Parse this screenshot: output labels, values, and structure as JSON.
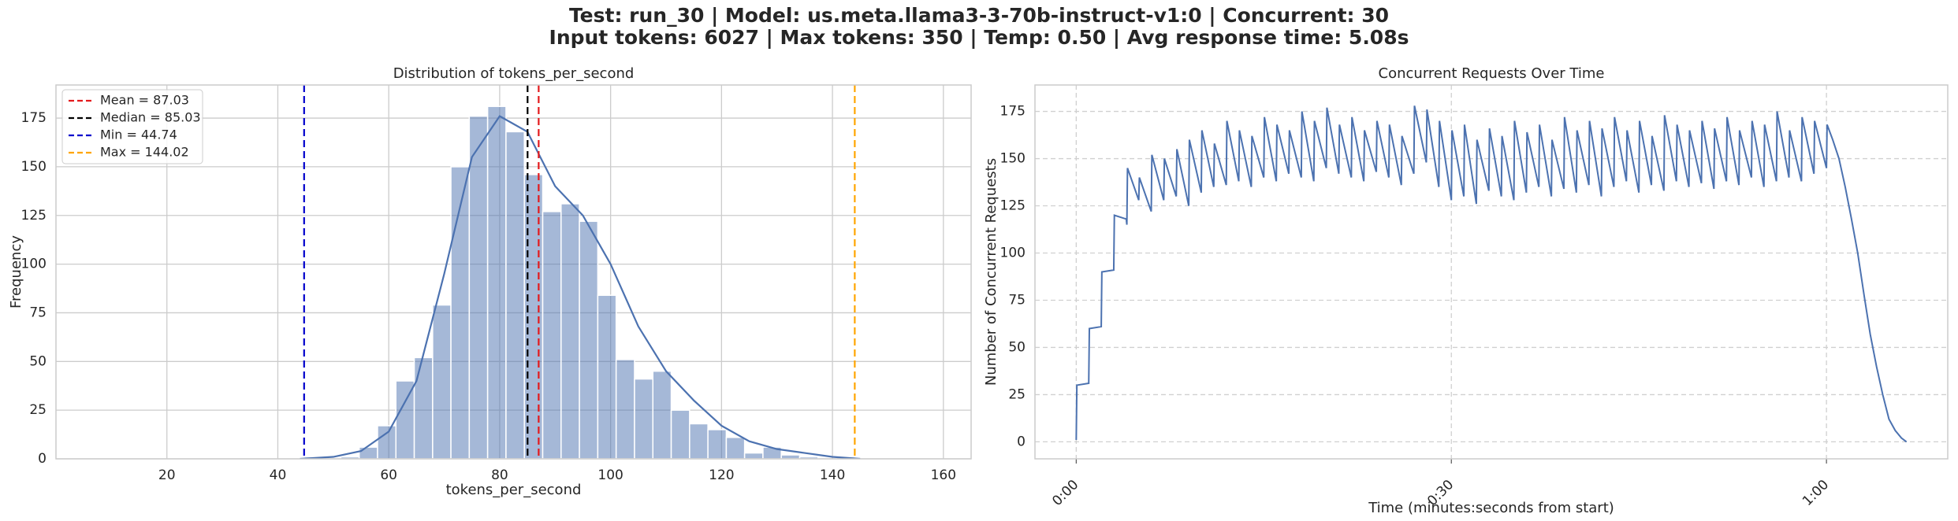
{
  "title": "Test: run_30 | Model: us.meta.llama3-3-70b-instruct-v1:0 | Concurrent: 30",
  "subtitle": "Input tokens: 6027 | Max tokens: 350 | Temp: 0.50 | Avg response time: 5.08s",
  "chart_data": [
    {
      "type": "histogram",
      "title": "Distribution of tokens_per_second",
      "x_label": "tokens_per_second",
      "y_label": "Frequency",
      "bins": [
        44.74,
        48.05,
        51.36,
        54.67,
        57.98,
        61.29,
        64.6,
        67.91,
        71.21,
        74.52,
        77.83,
        81.14,
        84.45,
        87.76,
        91.07,
        94.38,
        97.69,
        101.0,
        104.31,
        107.62,
        110.93,
        114.24,
        117.55,
        120.86,
        124.16,
        127.47,
        130.78,
        134.09,
        137.4,
        140.71,
        144.02
      ],
      "counts": [
        1,
        0,
        1,
        6,
        17,
        40,
        52,
        79,
        150,
        176,
        181,
        168,
        146,
        127,
        131,
        122,
        84,
        51,
        41,
        45,
        25,
        18,
        15,
        11,
        3,
        6,
        2,
        1,
        0,
        1
      ],
      "color": "#4c72b0",
      "kde": {
        "x": [
          44,
          50,
          55,
          60,
          65,
          70,
          75,
          80,
          85,
          90,
          95,
          100,
          105,
          110,
          115,
          120,
          125,
          130,
          135,
          140,
          145
        ],
        "y": [
          0,
          1,
          4,
          14,
          40,
          95,
          155,
          176,
          168,
          140,
          125,
          100,
          68,
          45,
          30,
          17,
          9,
          5,
          3,
          1,
          0
        ]
      },
      "lines": [
        {
          "name": "Mean = 87.03",
          "value": 87.03,
          "color": "#e41a1c"
        },
        {
          "name": "Median = 85.03",
          "value": 85.03,
          "color": "#000000"
        },
        {
          "name": "Min = 44.74",
          "value": 44.74,
          "color": "#0000cc"
        },
        {
          "name": "Max = 144.02",
          "value": 144.02,
          "color": "#ffa500"
        }
      ],
      "legend": "upper left",
      "xlim": [
        0,
        165
      ],
      "ylim": [
        0,
        192
      ],
      "xticks": [
        20,
        40,
        60,
        80,
        100,
        120,
        140,
        160
      ],
      "yticks": [
        0,
        25,
        50,
        75,
        100,
        125,
        150,
        175
      ],
      "grid": true,
      "grid_style": "solid"
    },
    {
      "type": "line",
      "title": "Concurrent Requests Over Time",
      "x_label": "Time (minutes:seconds from start)",
      "y_label": "Number of Concurrent Requests",
      "x": [
        0,
        0.05,
        1,
        1.05,
        2,
        2.05,
        3,
        3.05,
        4,
        4.05,
        4.1,
        5,
        5.05,
        6,
        6.05,
        7,
        7.05,
        8,
        8.05,
        9,
        9.05,
        10,
        10.05,
        11,
        11.05,
        12,
        12.05,
        13,
        13.05,
        14,
        14.05,
        15,
        15.05,
        16,
        16.05,
        17,
        17.05,
        18,
        18.05,
        19,
        19.05,
        20,
        20.05,
        21,
        21.05,
        22,
        22.05,
        23,
        23.05,
        24,
        24.05,
        25,
        25.05,
        26,
        26.05,
        27,
        27.05,
        28,
        28.05,
        29,
        29.05,
        30,
        30.05,
        31,
        31.05,
        32,
        32.05,
        33,
        33.05,
        34,
        34.05,
        35,
        35.05,
        36,
        36.05,
        37,
        37.05,
        38,
        38.05,
        39,
        39.05,
        40,
        40.05,
        41,
        41.05,
        42,
        42.05,
        43,
        43.05,
        44,
        44.05,
        45,
        45.05,
        46,
        46.05,
        47,
        47.05,
        48,
        48.05,
        49,
        49.05,
        50,
        50.05,
        51,
        51.05,
        52,
        52.05,
        53,
        53.05,
        54,
        54.05,
        55,
        55.05,
        56,
        56.05,
        57,
        57.05,
        58,
        58.05,
        59,
        59.05,
        60,
        60.05,
        60.5,
        61,
        61.5,
        62,
        62.5,
        63,
        63.5,
        64,
        64.5,
        65,
        65.5,
        66,
        66.4
      ],
      "values": [
        1,
        30,
        31,
        60,
        61,
        90,
        91,
        120,
        118,
        115,
        145,
        128,
        140,
        122,
        152,
        128,
        150,
        130,
        155,
        125,
        160,
        132,
        165,
        135,
        158,
        136,
        170,
        138,
        165,
        135,
        162,
        140,
        172,
        138,
        168,
        142,
        165,
        140,
        175,
        138,
        170,
        145,
        177,
        142,
        168,
        140,
        172,
        138,
        165,
        143,
        170,
        140,
        168,
        136,
        162,
        142,
        178,
        148,
        176,
        135,
        170,
        128,
        165,
        130,
        168,
        126,
        160,
        133,
        166,
        130,
        162,
        128,
        170,
        132,
        164,
        135,
        168,
        130,
        160,
        134,
        172,
        132,
        165,
        136,
        170,
        130,
        166,
        135,
        172,
        138,
        165,
        132,
        170,
        136,
        162,
        133,
        173,
        138,
        168,
        135,
        165,
        137,
        170,
        134,
        166,
        138,
        172,
        136,
        165,
        140,
        170,
        135,
        168,
        138,
        175,
        140,
        165,
        138,
        172,
        142,
        170,
        145,
        168,
        160,
        150,
        135,
        118,
        100,
        78,
        57,
        40,
        25,
        12,
        6,
        2,
        0
      ],
      "color": "#4c72b0",
      "xlim": [
        -3.3,
        69.7
      ],
      "ylim": [
        -9,
        189
      ],
      "xticks": [
        {
          "value": 0,
          "label": "0:00"
        },
        {
          "value": 30,
          "label": "0:30"
        },
        {
          "value": 60,
          "label": "1:00"
        }
      ],
      "yticks": [
        0,
        25,
        50,
        75,
        100,
        125,
        150,
        175
      ],
      "grid": true,
      "grid_style": "dashed"
    }
  ]
}
